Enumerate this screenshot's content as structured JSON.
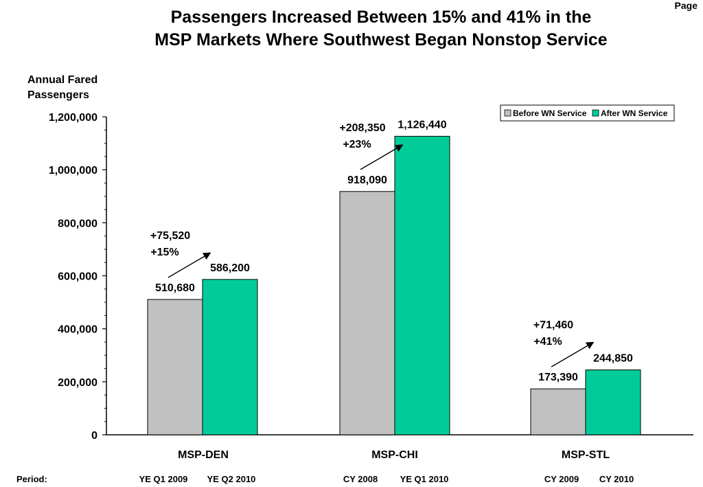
{
  "page_label": "Page",
  "chart_data": {
    "type": "bar",
    "title_lines": [
      "Passengers Increased Between 15% and 41% in  the",
      "MSP Markets Where Southwest Began Nonstop Service"
    ],
    "ylabel_lines": [
      "Annual Fared",
      "Passengers"
    ],
    "ylim": [
      0,
      1200000
    ],
    "yticks": [
      0,
      200000,
      400000,
      600000,
      800000,
      1000000,
      1200000
    ],
    "ytick_labels": [
      "0",
      "200,000",
      "400,000",
      "600,000",
      "800,000",
      "1,000,000",
      "1,200,000"
    ],
    "categories": [
      "MSP-DEN",
      "MSP-CHI",
      "MSP-STL"
    ],
    "series": [
      {
        "name": "Before WN Service",
        "color": "#c0c0c0",
        "values": [
          510680,
          918090,
          173390
        ],
        "labels": [
          "510,680",
          "918,090",
          "173,390"
        ]
      },
      {
        "name": "After WN Service",
        "color": "#00cc99",
        "values": [
          586200,
          1126440,
          244850
        ],
        "labels": [
          "586,200",
          "1,126,440",
          "244,850"
        ]
      }
    ],
    "annotations": [
      {
        "change": "+75,520",
        "percent": "+15%"
      },
      {
        "change": "+208,350",
        "percent": "+23%"
      },
      {
        "change": "+71,460",
        "percent": "+41%"
      }
    ],
    "legend_position": "top-right",
    "grid": false
  },
  "periods": {
    "label": "Period:",
    "values": [
      [
        "YE Q1 2009",
        "YE Q2 2010"
      ],
      [
        "CY 2008",
        "YE Q1 2010"
      ],
      [
        "CY 2009",
        "CY 2010"
      ]
    ]
  }
}
